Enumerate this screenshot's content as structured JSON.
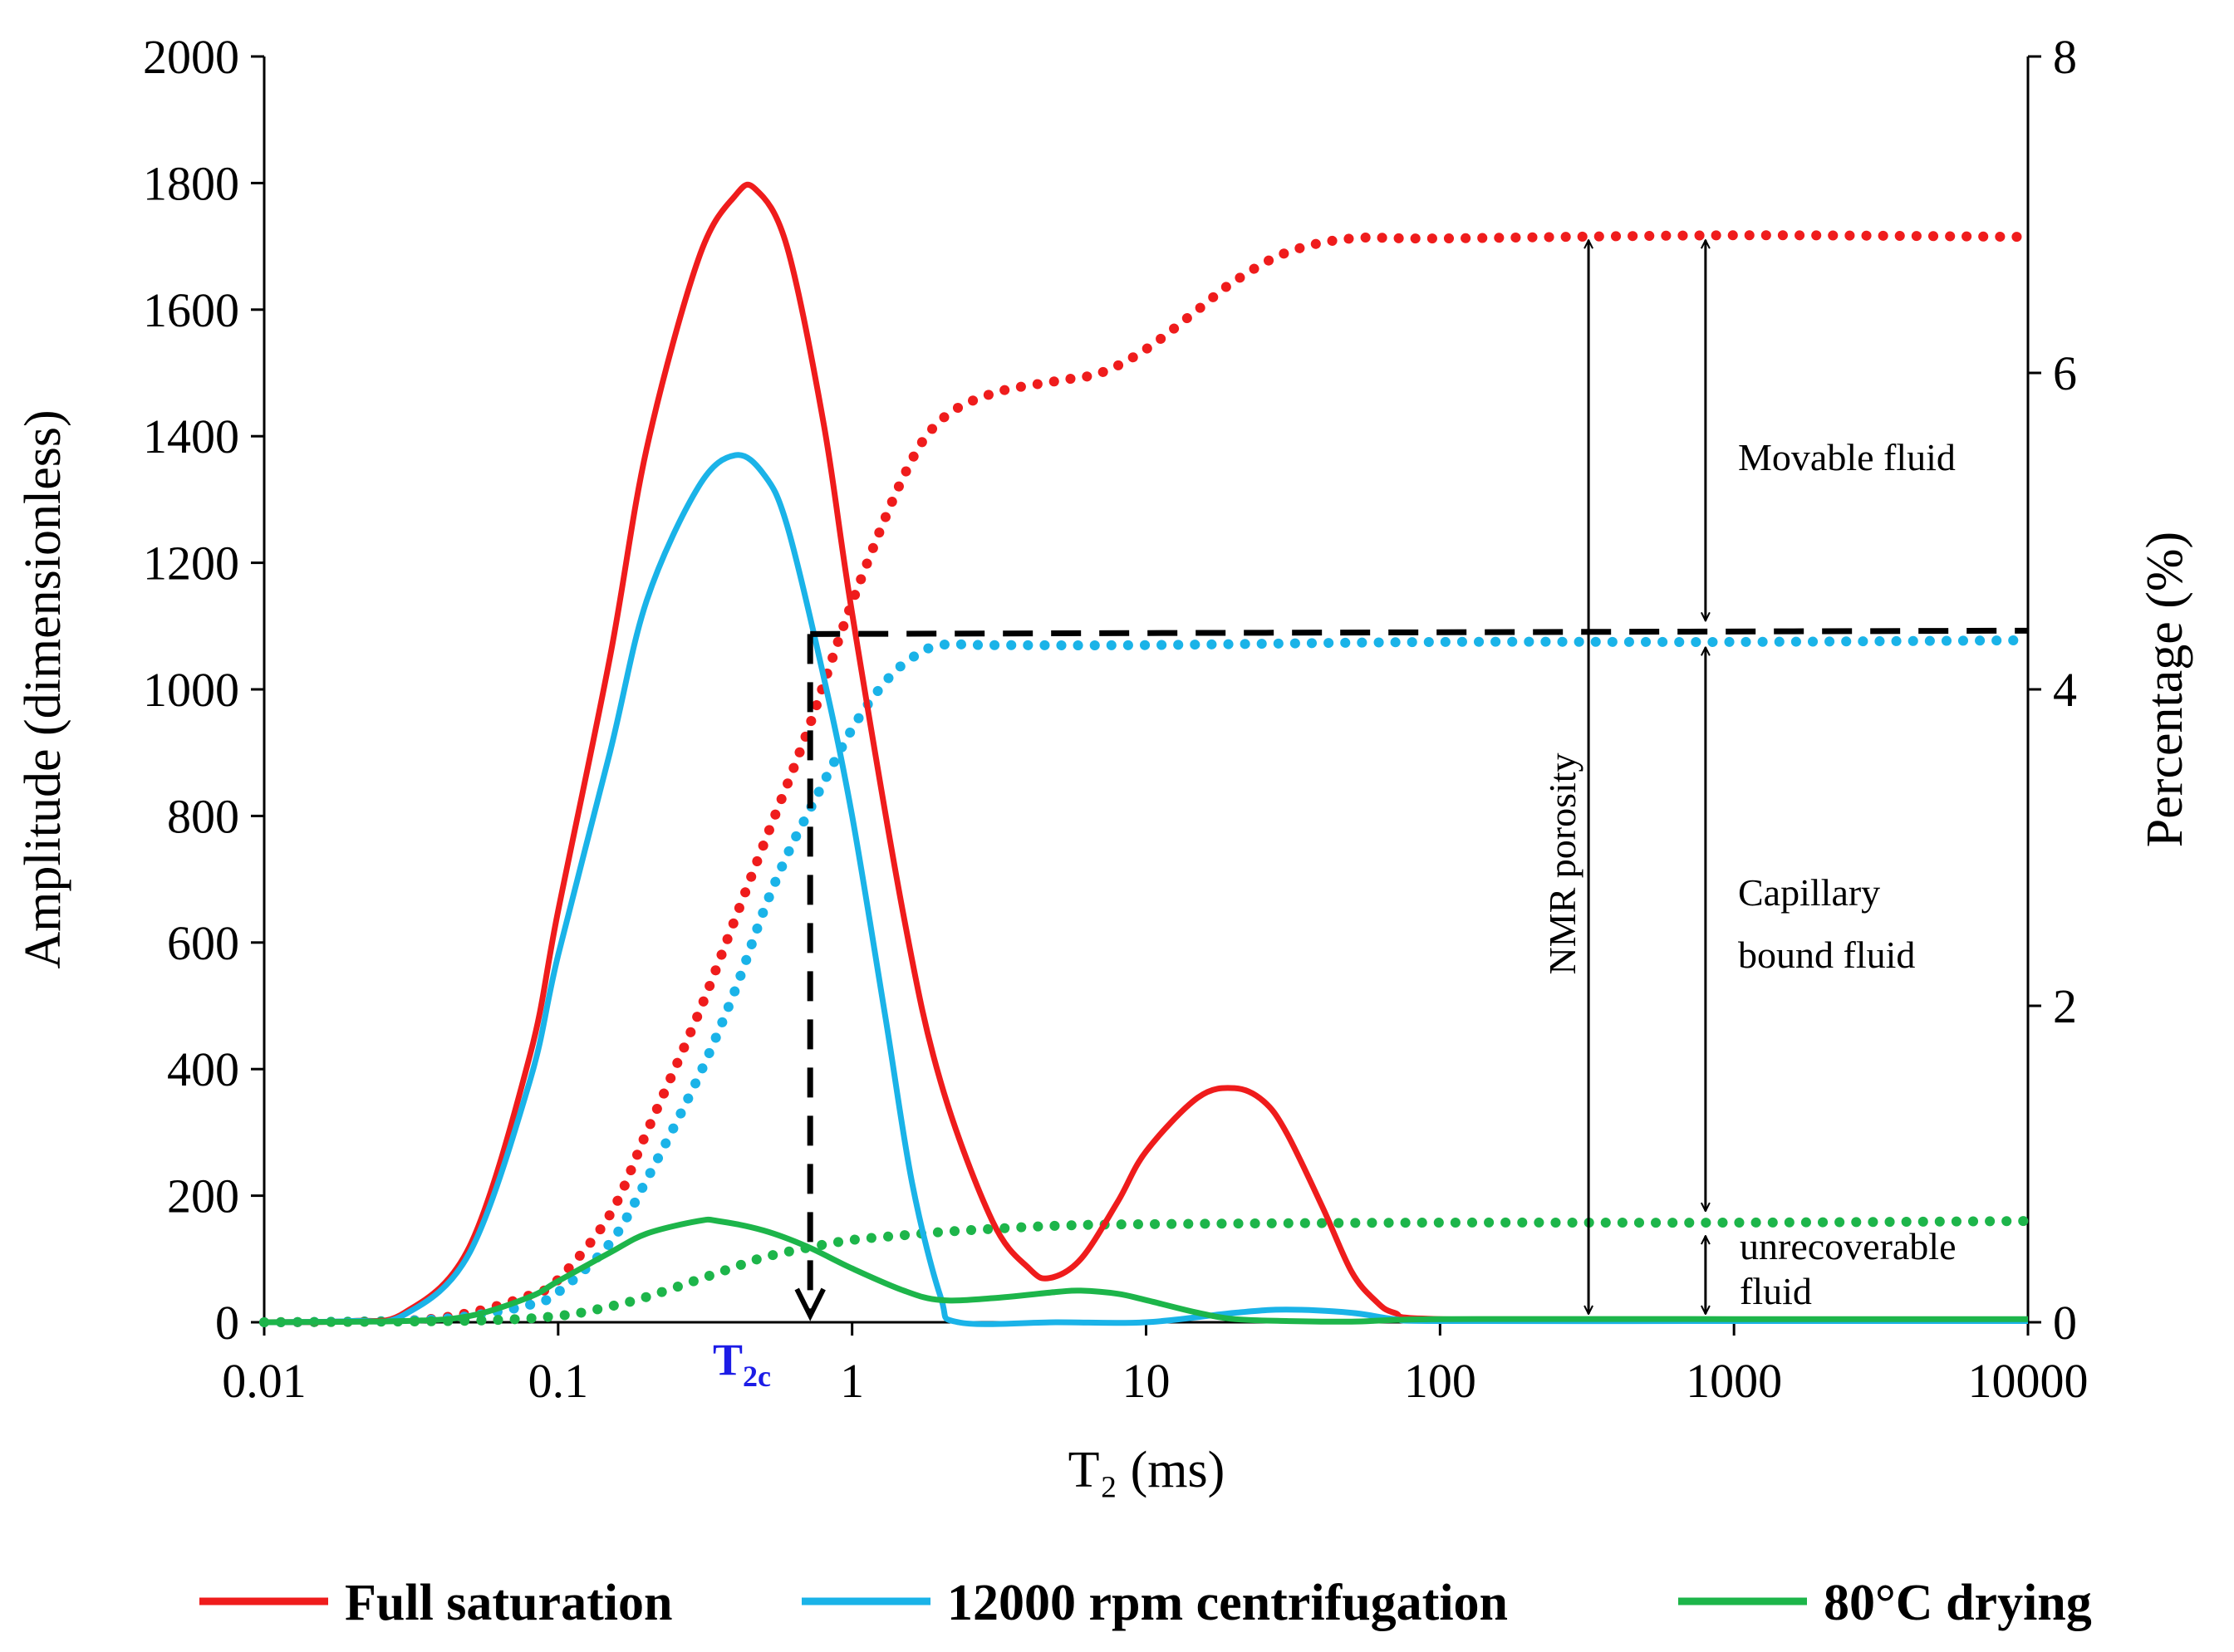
{
  "chart_data": {
    "type": "line",
    "x_scale": "log",
    "xlabel": "T₂ (ms)",
    "ylabel_left": "Amplitude (dimensionless)",
    "ylabel_right": "Percentage (%)",
    "xlim": [
      0.01,
      10000
    ],
    "ylim_left": [
      0,
      2000
    ],
    "ylim_right": [
      0,
      8
    ],
    "x_ticks": [
      "0.01",
      "0.1",
      "1",
      "10",
      "100",
      "1000",
      "10000"
    ],
    "y_ticks_left": [
      "0",
      "200",
      "400",
      "600",
      "800",
      "1000",
      "1200",
      "1400",
      "1600",
      "1800",
      "2000"
    ],
    "y_ticks_right": [
      "0",
      "2",
      "4",
      "6",
      "8"
    ],
    "series": [
      {
        "name": "Full saturation",
        "color": "#ef1c1c",
        "amplitude": {
          "x": [
            0.01,
            0.02,
            0.03,
            0.05,
            0.08,
            0.1,
            0.15,
            0.2,
            0.3,
            0.4,
            0.47,
            0.6,
            0.8,
            1.0,
            1.5,
            2.0,
            3.0,
            4.0,
            4.7,
            6.0,
            8.0,
            10,
            15,
            20,
            25,
            30,
            40,
            50,
            60,
            70,
            100,
            1000,
            10000
          ],
          "y": [
            0,
            2,
            15,
            120,
            420,
            650,
            1050,
            1380,
            1680,
            1780,
            1790,
            1700,
            1420,
            1120,
            640,
            380,
            160,
            85,
            70,
            100,
            190,
            270,
            355,
            370,
            350,
            300,
            180,
            80,
            35,
            15,
            5,
            3,
            3
          ]
        },
        "cumulative": {
          "x": [
            0.01,
            0.03,
            0.05,
            0.08,
            0.1,
            0.15,
            0.2,
            0.3,
            0.4,
            0.5,
            0.7,
            1.0,
            1.5,
            2.0,
            3.0,
            5.0,
            7.0,
            10,
            15,
            20,
            30,
            50,
            100,
            1000,
            10000
          ],
          "y": [
            0,
            0.01,
            0.06,
            0.17,
            0.27,
            0.68,
            1.2,
            1.95,
            2.55,
            3.02,
            3.72,
            4.55,
            5.35,
            5.7,
            5.87,
            5.95,
            6.0,
            6.15,
            6.4,
            6.58,
            6.76,
            6.85,
            6.85,
            6.87,
            6.86
          ]
        }
      },
      {
        "name": "12000 rpm centrifugation",
        "color": "#1ab3e8",
        "amplitude": {
          "x": [
            0.01,
            0.02,
            0.03,
            0.05,
            0.08,
            0.1,
            0.15,
            0.2,
            0.3,
            0.4,
            0.5,
            0.6,
            0.8,
            1.0,
            1.3,
            1.6,
            2.0,
            2.3,
            5.0,
            10,
            20,
            30,
            50,
            70,
            100,
            1000,
            10000
          ],
          "y": [
            0,
            2,
            12,
            110,
            380,
            580,
            900,
            1140,
            1320,
            1370,
            1340,
            1260,
            1020,
            800,
            480,
            220,
            40,
            0,
            0,
            0,
            15,
            20,
            15,
            5,
            2,
            2,
            2
          ]
        },
        "cumulative": {
          "x": [
            0.01,
            0.03,
            0.05,
            0.08,
            0.1,
            0.15,
            0.2,
            0.3,
            0.4,
            0.5,
            0.6,
            0.7,
            1.0,
            1.3,
            1.6,
            2.0,
            3.0,
            10,
            100,
            1000,
            10000
          ],
          "y": [
            0,
            0.01,
            0.04,
            0.11,
            0.19,
            0.5,
            0.9,
            1.55,
            2.1,
            2.6,
            2.95,
            3.2,
            3.75,
            4.05,
            4.2,
            4.28,
            4.28,
            4.28,
            4.3,
            4.3,
            4.31
          ]
        }
      },
      {
        "name": "80°C drying",
        "color": "#1db54a",
        "amplitude": {
          "x": [
            0.01,
            0.03,
            0.05,
            0.08,
            0.1,
            0.15,
            0.2,
            0.3,
            0.35,
            0.5,
            0.7,
            1.0,
            1.5,
            2.0,
            3.0,
            5.0,
            6.0,
            8.0,
            10,
            15,
            20,
            30,
            50,
            100,
            1000,
            10000
          ],
          "y": [
            0,
            2,
            10,
            40,
            65,
            110,
            140,
            160,
            160,
            145,
            120,
            85,
            50,
            35,
            38,
            48,
            50,
            45,
            35,
            15,
            5,
            2,
            1,
            5,
            5,
            5
          ]
        },
        "cumulative": {
          "x": [
            0.01,
            0.05,
            0.1,
            0.15,
            0.2,
            0.3,
            0.4,
            0.5,
            0.7,
            1.0,
            1.5,
            2.0,
            3.0,
            5.0,
            10,
            100,
            1000,
            10000
          ],
          "y": [
            0,
            0.01,
            0.04,
            0.1,
            0.16,
            0.27,
            0.35,
            0.41,
            0.47,
            0.52,
            0.55,
            0.57,
            0.59,
            0.61,
            0.62,
            0.63,
            0.63,
            0.64
          ]
        }
      }
    ],
    "t2_cutoff": {
      "label_main": "T",
      "label_sub": "2c",
      "x": 0.72,
      "level_percent": 4.35,
      "label_color": "#1c1ce6"
    },
    "annotations": {
      "movable_fluid": "Movable fluid",
      "capillary_line1": "Capillary",
      "capillary_line2": "bound fluid",
      "unrecoverable_line1": "unrecoverable",
      "unrecoverable_line2": "fluid",
      "nmr_porosity": "NMR porosity"
    },
    "arrow_positions_x": [
      320,
      800
    ],
    "legend_position": "bottom"
  }
}
